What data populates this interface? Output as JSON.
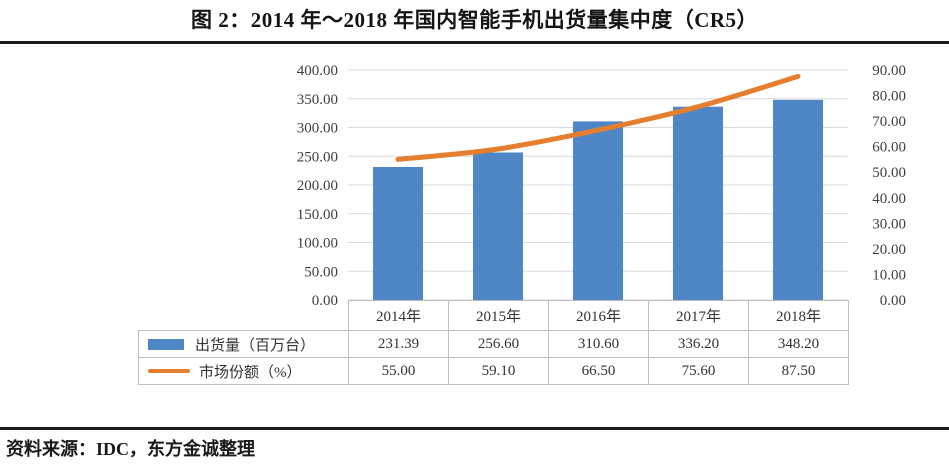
{
  "title": "图 2：2014 年～2018 年国内智能手机出货量集中度（CR5）",
  "source": "资料来源：IDC，东方金诚整理",
  "colors": {
    "bar": "#4E86C6",
    "line": "#E57E2E",
    "grid": "#D9D9D9",
    "table_border": "#BFBFBF",
    "axis_text": "#3F3F3F",
    "rule": "#1D1D1D"
  },
  "chart_data": {
    "type": "bar",
    "subtype": "combo-bar-line",
    "categories": [
      "2014年",
      "2015年",
      "2016年",
      "2017年",
      "2018年"
    ],
    "series": [
      {
        "name": "出货量（百万台）",
        "type": "bar",
        "axis": "left",
        "values": [
          231.39,
          256.6,
          310.6,
          336.2,
          348.2
        ]
      },
      {
        "name": "市场份额（%）",
        "type": "line",
        "axis": "right",
        "values": [
          55.0,
          59.1,
          66.5,
          75.6,
          87.5
        ]
      }
    ],
    "left_axis": {
      "min": 0,
      "max": 400,
      "step": 50,
      "labels": [
        "400.00",
        "350.00",
        "300.00",
        "250.00",
        "200.00",
        "150.00",
        "100.00",
        "50.00",
        "0.00"
      ]
    },
    "right_axis": {
      "min": 0,
      "max": 90,
      "step": 10,
      "labels": [
        "90.00",
        "80.00",
        "70.00",
        "60.00",
        "50.00",
        "40.00",
        "30.00",
        "20.00",
        "10.00",
        "0.00"
      ]
    },
    "grid": true,
    "legend_position": "table-left"
  },
  "table": {
    "header": [
      "2014年",
      "2015年",
      "2016年",
      "2017年",
      "2018年"
    ],
    "rows": [
      {
        "swatch": "bar",
        "label": "出货量（百万台）",
        "values": [
          "231.39",
          "256.60",
          "310.60",
          "336.20",
          "348.20"
        ]
      },
      {
        "swatch": "line",
        "label": "市场份额（%）",
        "values": [
          "55.00",
          "59.10",
          "66.50",
          "75.60",
          "87.50"
        ]
      }
    ]
  }
}
